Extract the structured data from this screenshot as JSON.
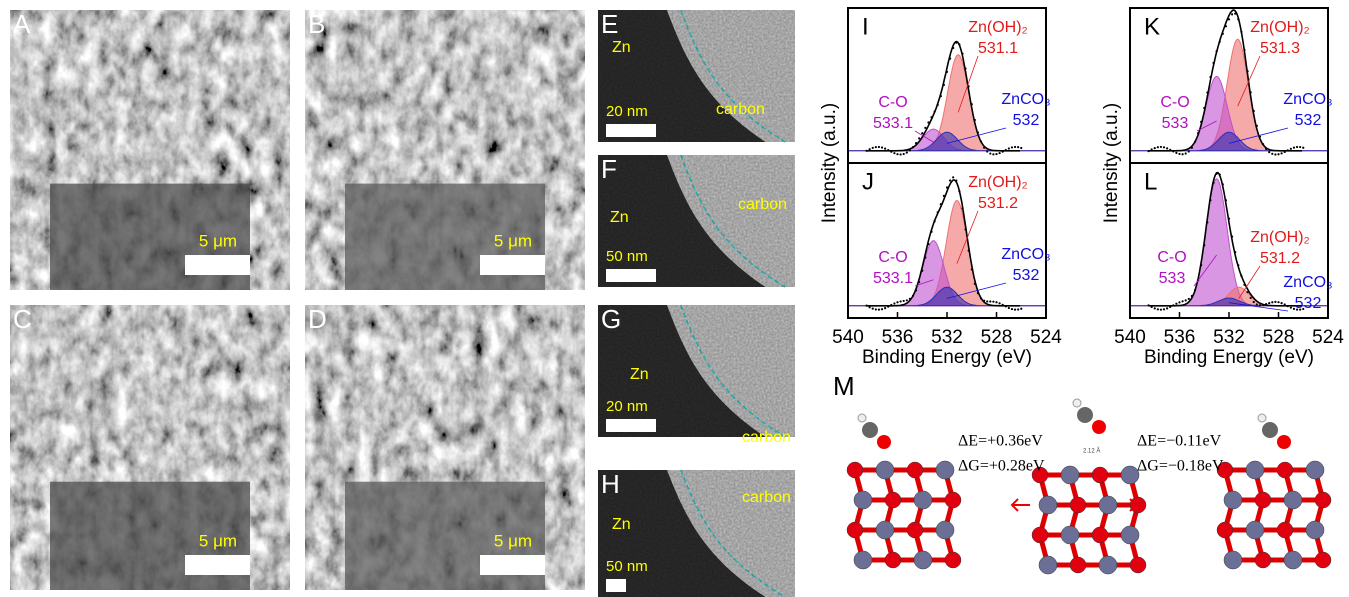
{
  "micrographs": [
    {
      "label": "A",
      "scale": "5 μm"
    },
    {
      "label": "B",
      "scale": "5 μm"
    },
    {
      "label": "C",
      "scale": "5 μm"
    },
    {
      "label": "D",
      "scale": "5 μm"
    },
    {
      "label": "E",
      "scale": "20 nm",
      "metal": "Zn",
      "coating": "carbon"
    },
    {
      "label": "F",
      "scale": "50 nm",
      "metal": "Zn",
      "coating": "carbon"
    },
    {
      "label": "G",
      "scale": "20 nm",
      "metal": "Zn",
      "coating": "carbon"
    },
    {
      "label": "H",
      "scale": "50 nm",
      "metal": "Zn",
      "coating": "carbon"
    }
  ],
  "xps": {
    "y_label": "Intensity (a.u.)",
    "x_label": "Binding Energy (eV)",
    "xlim": [
      540,
      524
    ],
    "xticks": [
      540,
      536,
      532,
      528,
      524
    ],
    "panels": [
      {
        "label": "I",
        "peaks": [
          {
            "name": "Zn(OH)₂",
            "center": 531.1,
            "height": 0.62,
            "color": "#f07070",
            "text_color": "#e41a1a"
          },
          {
            "name": "C-O",
            "center": 533.1,
            "height": 0.14,
            "color": "#c050d0",
            "text_color": "#b010c0"
          },
          {
            "name": "ZnCO₃",
            "center": 532,
            "height": 0.12,
            "color": "#3030b0",
            "text_color": "#1010e0"
          }
        ]
      },
      {
        "label": "J",
        "peaks": [
          {
            "name": "Zn(OH)₂",
            "center": 531.2,
            "height": 0.68,
            "color": "#f07070",
            "text_color": "#e41a1a"
          },
          {
            "name": "C-O",
            "center": 533.1,
            "height": 0.42,
            "color": "#c050d0",
            "text_color": "#b010c0"
          },
          {
            "name": "ZnCO₃",
            "center": 532,
            "height": 0.12,
            "color": "#3030b0",
            "text_color": "#1010e0"
          }
        ]
      },
      {
        "label": "K",
        "peaks": [
          {
            "name": "Zn(OH)₂",
            "center": 531.3,
            "height": 0.72,
            "color": "#f07070",
            "text_color": "#e41a1a"
          },
          {
            "name": "C-O",
            "center": 533,
            "height": 0.48,
            "color": "#c050d0",
            "text_color": "#b010c0"
          },
          {
            "name": "ZnCO₃",
            "center": 532,
            "height": 0.12,
            "color": "#3030b0",
            "text_color": "#1010e0"
          }
        ]
      },
      {
        "label": "L",
        "peaks": [
          {
            "name": "C-O",
            "center": 533,
            "height": 0.82,
            "color": "#c050d0",
            "text_color": "#b010c0"
          },
          {
            "name": "Zn(OH)₂",
            "center": 531.2,
            "height": 0.12,
            "color": "#f07070",
            "text_color": "#e41a1a"
          },
          {
            "name": "ZnCO₃",
            "center": 532,
            "height": 0.05,
            "color": "#3030b0",
            "text_color": "#1010e0"
          }
        ]
      }
    ]
  },
  "dft": {
    "label": "M",
    "bond": "2.12 Å",
    "steps": [
      {
        "dE": "ΔE=+0.36eV",
        "dG": "ΔG=+0.28eV"
      },
      {
        "dE": "ΔE=−0.11eV",
        "dG": "ΔG=−0.18eV"
      }
    ]
  }
}
